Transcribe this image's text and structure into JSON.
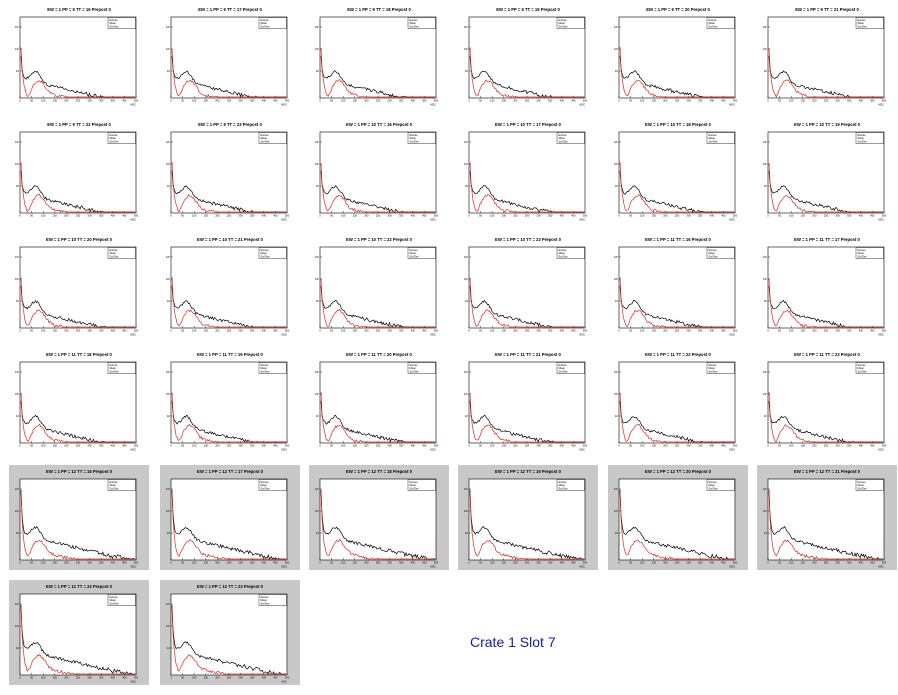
{
  "page": {
    "footer_label": "Crate 1 Slot 7"
  },
  "colors": {
    "series_black": "#000000",
    "series_red": "#e8231f",
    "shaded_background": "#c8c8c8",
    "footer_text": "#1a1aa8"
  },
  "chart_data": {
    "type": "line",
    "y_scale": "log",
    "x_axis_label": "ADC",
    "x_ticks": [
      "0",
      "50",
      "100",
      "150",
      "200",
      "250",
      "300",
      "350",
      "400",
      "450",
      "500"
    ],
    "y_ticks": [
      "10",
      "10²",
      "10³"
    ],
    "stats_box_labels": [
      "Entries",
      "Mean",
      "Std Dev"
    ],
    "shaded_panels": "EW = 1 PP = 12",
    "panels": [
      {
        "title": "EW = 1 PP = 9 TT = 16 Prepost 0"
      },
      {
        "title": "EW = 1 PP = 9 TT = 17 Prepost 0"
      },
      {
        "title": "EW = 1 PP = 9 TT = 18 Prepost 0"
      },
      {
        "title": "EW = 1 PP = 9 TT = 19 Prepost 0"
      },
      {
        "title": "EW = 1 PP = 9 TT = 20 Prepost 0"
      },
      {
        "title": "EW = 1 PP = 9 TT = 21 Prepost 0"
      },
      {
        "title": "EW = 1 PP = 9 TT = 22 Prepost 0"
      },
      {
        "title": "EW = 1 PP = 9 TT = 23 Prepost 0"
      },
      {
        "title": "EW = 1 PP = 10 TT = 16 Prepost 0"
      },
      {
        "title": "EW = 1 PP = 10 TT = 17 Prepost 0"
      },
      {
        "title": "EW = 1 PP = 10 TT = 18 Prepost 0"
      },
      {
        "title": "EW = 1 PP = 10 TT = 19 Prepost 0"
      },
      {
        "title": "EW = 1 PP = 10 TT = 20 Prepost 0"
      },
      {
        "title": "EW = 1 PP = 10 TT = 21 Prepost 0"
      },
      {
        "title": "EW = 1 PP = 10 TT = 22 Prepost 0"
      },
      {
        "title": "EW = 1 PP = 10 TT = 23 Prepost 0"
      },
      {
        "title": "EW = 1 PP = 11 TT = 16 Prepost 0"
      },
      {
        "title": "EW = 1 PP = 11 TT = 17 Prepost 0"
      },
      {
        "title": "EW = 1 PP = 11 TT = 18 Prepost 0"
      },
      {
        "title": "EW = 1 PP = 11 TT = 19 Prepost 0"
      },
      {
        "title": "EW = 1 PP = 11 TT = 20 Prepost 0"
      },
      {
        "title": "EW = 1 PP = 11 TT = 21 Prepost 0"
      },
      {
        "title": "EW = 1 PP = 11 TT = 22 Prepost 0"
      },
      {
        "title": "EW = 1 PP = 11 TT = 23 Prepost 0"
      },
      {
        "title": "EW = 1 PP = 12 TT = 16 Prepost 0"
      },
      {
        "title": "EW = 1 PP = 12 TT = 17 Prepost 0"
      },
      {
        "title": "EW = 1 PP = 12 TT = 18 Prepost 0"
      },
      {
        "title": "EW = 1 PP = 12 TT = 19 Prepost 0"
      },
      {
        "title": "EW = 1 PP = 12 TT = 20 Prepost 0"
      },
      {
        "title": "EW = 1 PP = 12 TT = 21 Prepost 0"
      },
      {
        "title": "EW = 1 PP = 12 TT = 22 Prepost 0"
      },
      {
        "title": "EW = 1 PP = 12 TT = 23 Prepost 0"
      }
    ]
  }
}
